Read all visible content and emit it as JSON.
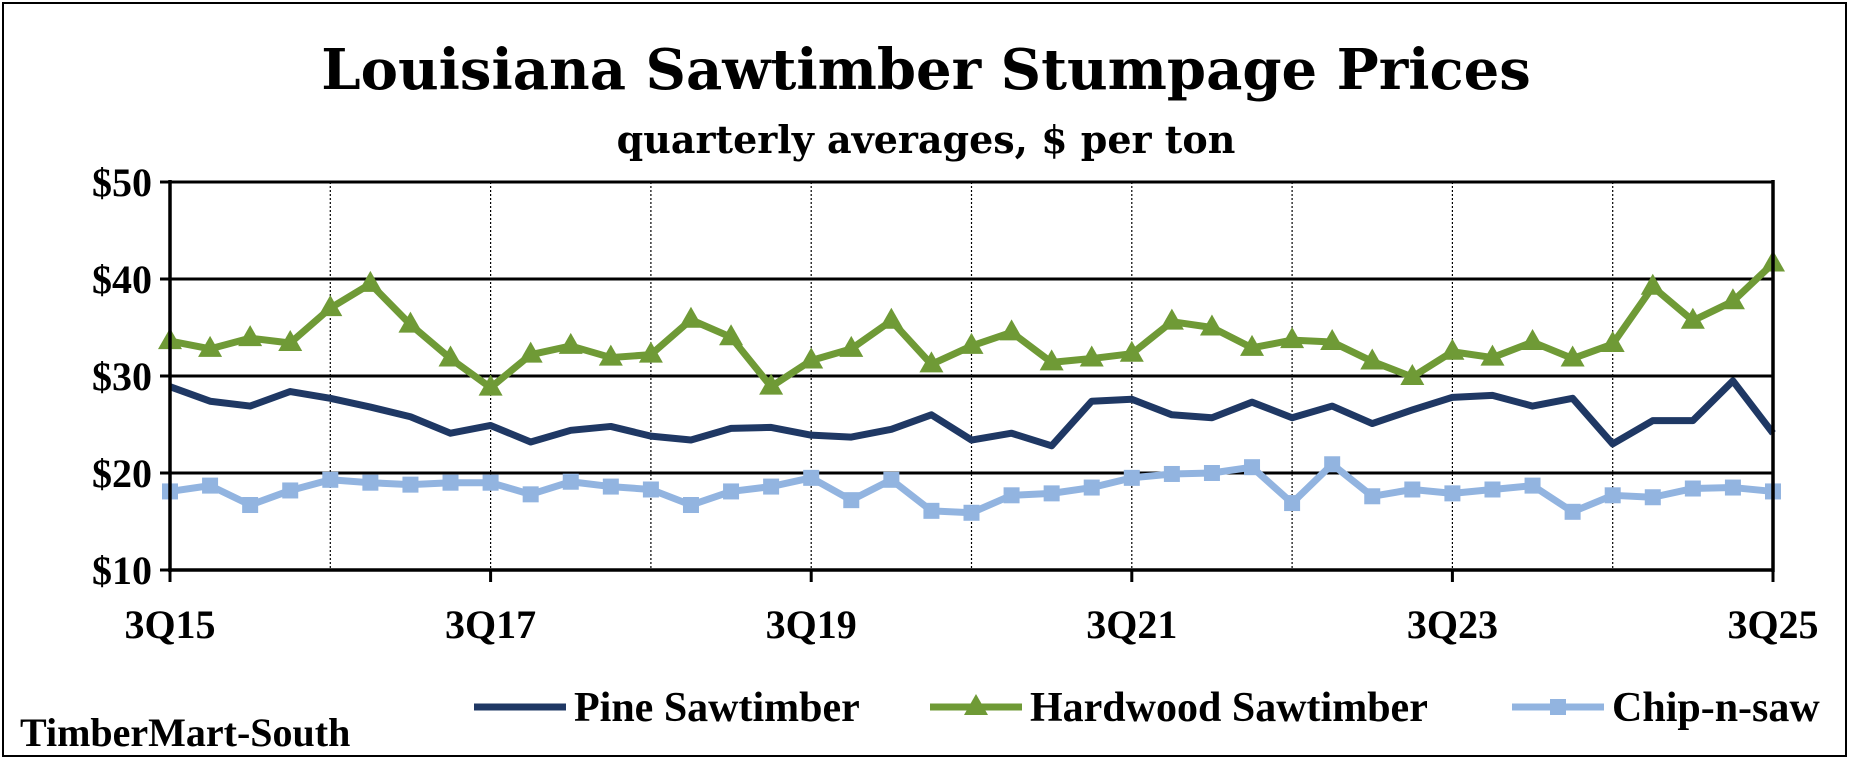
{
  "chart_data": {
    "type": "line",
    "title": "Louisiana Sawtimber Stumpage Prices",
    "subtitle": "quarterly averages, $ per ton",
    "source": "TimberMart-South",
    "ylim": [
      10,
      50
    ],
    "y_ticks": [
      10,
      20,
      30,
      40,
      50
    ],
    "y_tick_labels": [
      "$10",
      "$20",
      "$30",
      "$40",
      "$50"
    ],
    "x_tick_labels": [
      "3Q15",
      "3Q17",
      "3Q19",
      "3Q21",
      "3Q23",
      "3Q25"
    ],
    "x_tick_positions": [
      0,
      8,
      16,
      24,
      32,
      40
    ],
    "grid": "horizontal solid at y ticks; vertical dotted yearly",
    "legend_placement": "bottom",
    "x": [
      "3Q15",
      "4Q15",
      "1Q16",
      "2Q16",
      "3Q16",
      "4Q16",
      "1Q17",
      "2Q17",
      "3Q17",
      "4Q17",
      "1Q18",
      "2Q18",
      "3Q18",
      "4Q18",
      "1Q19",
      "2Q19",
      "3Q19",
      "4Q19",
      "1Q20",
      "2Q20",
      "3Q20",
      "4Q20",
      "1Q21",
      "2Q21",
      "3Q21",
      "4Q21",
      "1Q22",
      "2Q22",
      "3Q22",
      "4Q22",
      "1Q23",
      "2Q23",
      "3Q23",
      "4Q23",
      "1Q24",
      "2Q24",
      "3Q24",
      "4Q24",
      "1Q25",
      "2Q25",
      "3Q25"
    ],
    "series": [
      {
        "name": "Pine Sawtimber",
        "color": "#1f3864",
        "marker": "none",
        "values": [
          28.9,
          27.4,
          26.9,
          28.4,
          27.7,
          26.8,
          25.8,
          24.1,
          24.9,
          23.2,
          24.4,
          24.8,
          23.8,
          23.4,
          24.6,
          24.7,
          23.9,
          23.7,
          24.5,
          26.0,
          23.4,
          24.1,
          22.8,
          27.4,
          27.6,
          26.0,
          25.7,
          27.3,
          25.7,
          26.9,
          25.1,
          26.5,
          27.8,
          28.0,
          26.9,
          27.7,
          23.0,
          25.4,
          25.4,
          29.5,
          24.1
        ]
      },
      {
        "name": "Hardwood Sawtimber",
        "color": "#6f9a36",
        "marker": "triangle",
        "values": [
          33.6,
          32.8,
          33.9,
          33.4,
          37.0,
          39.5,
          35.3,
          31.8,
          28.8,
          32.2,
          33.1,
          31.9,
          32.2,
          35.8,
          34.0,
          28.9,
          31.6,
          32.8,
          35.7,
          31.2,
          33.1,
          34.5,
          31.4,
          31.8,
          32.3,
          35.6,
          35.0,
          32.9,
          33.7,
          33.5,
          31.5,
          29.9,
          32.5,
          31.9,
          33.5,
          31.8,
          33.3,
          39.2,
          35.7,
          37.7,
          41.6
        ]
      },
      {
        "name": "Chip-n-saw",
        "color": "#92b4e0",
        "marker": "square",
        "values": [
          18.1,
          18.7,
          16.7,
          18.2,
          19.3,
          19.0,
          18.8,
          19.0,
          19.0,
          17.8,
          19.1,
          18.6,
          18.3,
          16.7,
          18.1,
          18.6,
          19.5,
          17.2,
          19.3,
          16.1,
          15.9,
          17.7,
          17.9,
          18.5,
          19.5,
          19.9,
          20.0,
          20.6,
          16.9,
          20.9,
          17.6,
          18.3,
          17.9,
          18.3,
          18.7,
          16.0,
          17.7,
          17.5,
          18.4,
          18.5,
          18.1
        ]
      }
    ]
  }
}
